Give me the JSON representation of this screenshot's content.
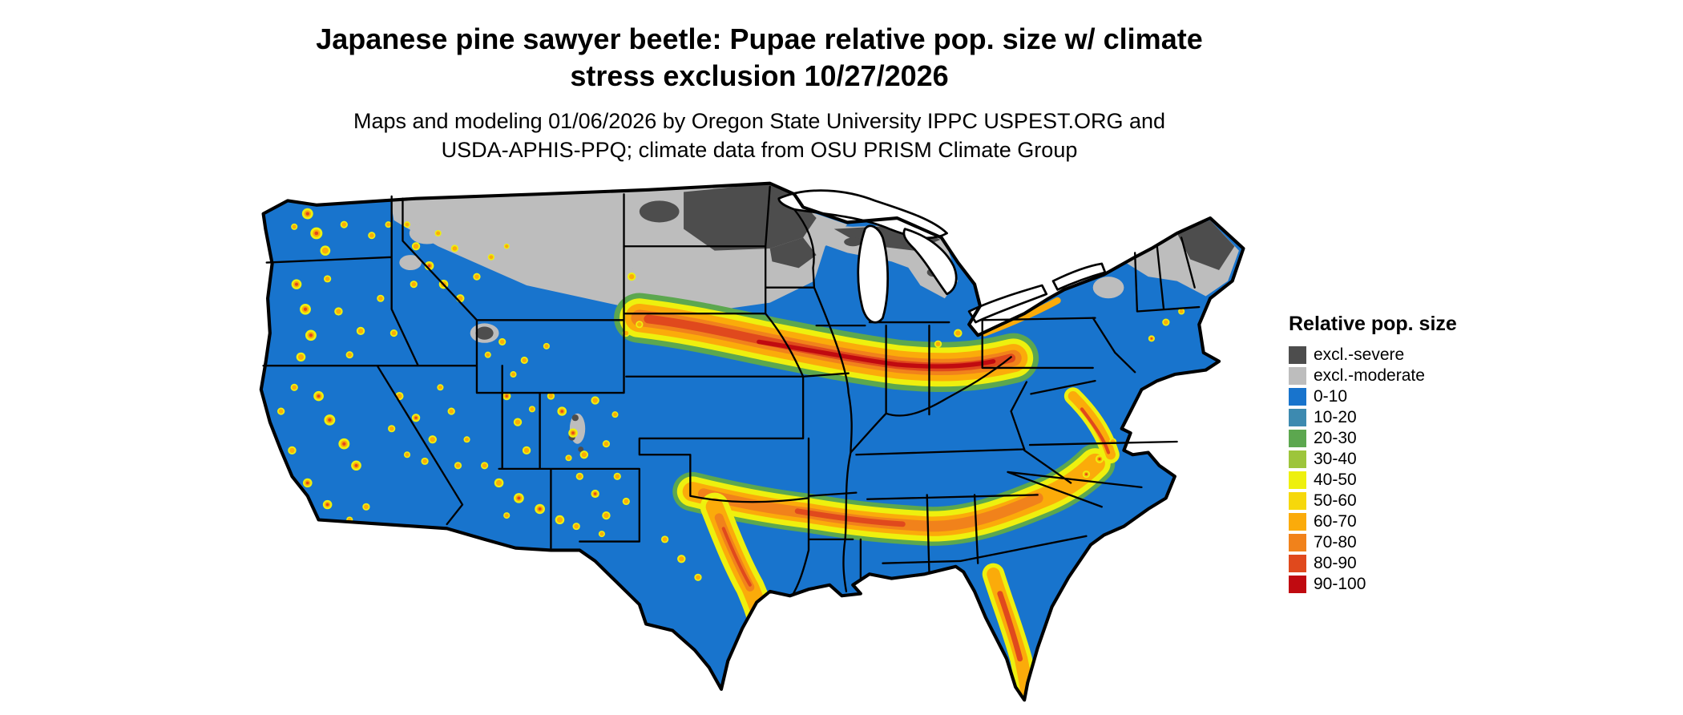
{
  "header": {
    "title_line1": "Japanese pine sawyer beetle: Pupae relative pop. size w/ climate",
    "title_line2": "stress exclusion 10/27/2026",
    "subtitle_line1": "Maps and modeling 01/06/2026 by Oregon State University IPPC USPEST.ORG and",
    "subtitle_line2": "USDA-APHIS-PPQ; climate data from OSU PRISM Climate Group"
  },
  "legend": {
    "title": "Relative pop. size",
    "items": [
      {
        "label": "excl.-severe",
        "color": "#4d4d4d"
      },
      {
        "label": "excl.-moderate",
        "color": "#bdbdbd"
      },
      {
        "label": "0-10",
        "color": "#1874cd"
      },
      {
        "label": "10-20",
        "color": "#3d8ab0"
      },
      {
        "label": "20-30",
        "color": "#5ca74f"
      },
      {
        "label": "30-40",
        "color": "#9dc53b"
      },
      {
        "label": "40-50",
        "color": "#eef00e"
      },
      {
        "label": "50-60",
        "color": "#f6d80b"
      },
      {
        "label": "60-70",
        "color": "#fbab0a"
      },
      {
        "label": "70-80",
        "color": "#f1821b"
      },
      {
        "label": "80-90",
        "color": "#e0491d"
      },
      {
        "label": "90-100",
        "color": "#c00a10"
      }
    ]
  },
  "map": {
    "description": "Contiguous United States choropleth of relative population size"
  }
}
